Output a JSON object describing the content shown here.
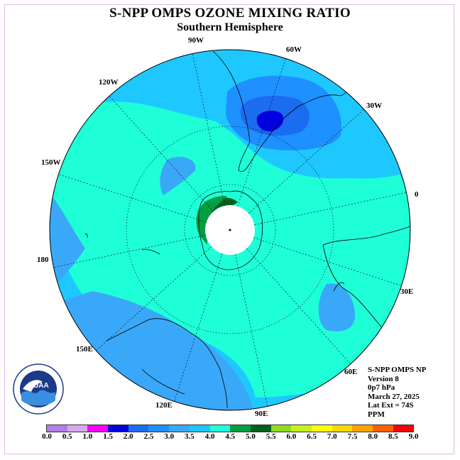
{
  "title": "S-NPP OMPS OZONE MIXING RATIO",
  "subtitle": "Southern Hemisphere",
  "longitude_labels": [
    "90W",
    "60W",
    "120W",
    "30W",
    "150W",
    "0",
    "180",
    "30E",
    "150E",
    "60E",
    "120E",
    "90E"
  ],
  "info": {
    "instrument": "S-NPP OMPS NP",
    "version": "Version 8",
    "pressure": "0p7 hPa",
    "date": "March 27, 2025",
    "lat_ext": "Lat Ext = 74S",
    "units": "PPM"
  },
  "logo_text": "NOAA",
  "colorbar": {
    "ticks": [
      "0.0",
      "0.5",
      "1.0",
      "1.5",
      "2.0",
      "2.5",
      "3.0",
      "3.5",
      "4.0",
      "4.5",
      "5.0",
      "5.5",
      "6.0",
      "6.5",
      "7.0",
      "7.5",
      "8.0",
      "8.5",
      "9.0"
    ],
    "colors": [
      "#b07ee8",
      "#d9a8f0",
      "#ff00ff",
      "#0000e0",
      "#1c6cf0",
      "#1e90ff",
      "#3aa8f8",
      "#1ec8ff",
      "#1effd8",
      "#00a040",
      "#006020",
      "#8fdc1a",
      "#c8f01a",
      "#ffff00",
      "#ffd700",
      "#ffa500",
      "#ff6000",
      "#ff0000",
      "#8b5a3c"
    ]
  },
  "map_colors": {
    "base": "#1ec8ff",
    "mid": "#3aa8f8",
    "teal": "#1effd8",
    "blue": "#1e90ff",
    "dark_blue": "#0000e0",
    "green": "#00a040",
    "dark_green": "#006020"
  }
}
